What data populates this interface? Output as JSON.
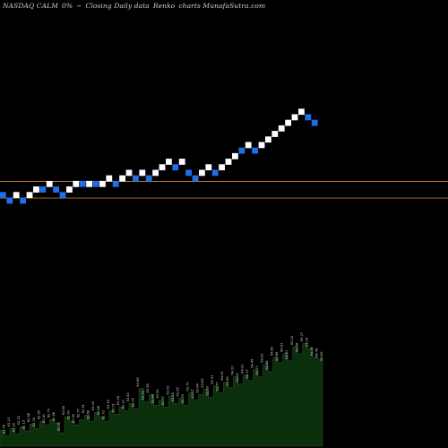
{
  "header": {
    "ticker": "NASDAQ CALM",
    "change": "0%",
    "arrow": "~",
    "description": "Closing Daily data",
    "chart_kind": "Renko",
    "brand": "charts MunafaSutra.com"
  },
  "colors": {
    "background": "#000000",
    "up_brick": "#ffffff",
    "down_brick": "#1e6fe8",
    "support_line": "#b87333",
    "volume_fill": "#0b2e0b",
    "volume_stroke": "#2a5a2a",
    "label_text": "#d0d0d0"
  },
  "chart_data": [
    {
      "type": "renko",
      "bricks": [
        {
          "dir": "down",
          "level": 0
        },
        {
          "dir": "down",
          "level": -1
        },
        {
          "dir": "up",
          "level": 0
        },
        {
          "dir": "down",
          "level": -1
        },
        {
          "dir": "up",
          "level": 0
        },
        {
          "dir": "up",
          "level": 1
        },
        {
          "dir": "down",
          "level": 1
        },
        {
          "dir": "up",
          "level": 2
        },
        {
          "dir": "down",
          "level": 1
        },
        {
          "dir": "down",
          "level": 0
        },
        {
          "dir": "up",
          "level": 1
        },
        {
          "dir": "up",
          "level": 2
        },
        {
          "dir": "down",
          "level": 2
        },
        {
          "dir": "up",
          "level": 2
        },
        {
          "dir": "down",
          "level": 2
        },
        {
          "dir": "up",
          "level": 2
        },
        {
          "dir": "up",
          "level": 3
        },
        {
          "dir": "down",
          "level": 2
        },
        {
          "dir": "up",
          "level": 3
        },
        {
          "dir": "up",
          "level": 4
        },
        {
          "dir": "down",
          "level": 3
        },
        {
          "dir": "up",
          "level": 4
        },
        {
          "dir": "down",
          "level": 3
        },
        {
          "dir": "up",
          "level": 4
        },
        {
          "dir": "up",
          "level": 5
        },
        {
          "dir": "up",
          "level": 6
        },
        {
          "dir": "down",
          "level": 5
        },
        {
          "dir": "up",
          "level": 6
        },
        {
          "dir": "down",
          "level": 4
        },
        {
          "dir": "down",
          "level": 3
        },
        {
          "dir": "up",
          "level": 4
        },
        {
          "dir": "up",
          "level": 5
        },
        {
          "dir": "down",
          "level": 4
        },
        {
          "dir": "up",
          "level": 5
        },
        {
          "dir": "up",
          "level": 6
        },
        {
          "dir": "up",
          "level": 7
        },
        {
          "dir": "down",
          "level": 8
        },
        {
          "dir": "up",
          "level": 9
        },
        {
          "dir": "down",
          "level": 8
        },
        {
          "dir": "up",
          "level": 9
        },
        {
          "dir": "up",
          "level": 10
        },
        {
          "dir": "up",
          "level": 11
        },
        {
          "dir": "up",
          "level": 12
        },
        {
          "dir": "up",
          "level": 13
        },
        {
          "dir": "up",
          "level": 14
        },
        {
          "dir": "up",
          "level": 15
        },
        {
          "dir": "down",
          "level": 14
        },
        {
          "dir": "down",
          "level": 13
        }
      ],
      "support_levels": [
        2.5,
        -0.5
      ]
    },
    {
      "type": "area",
      "series_label": "volume",
      "values": [
        18,
        12,
        20,
        14,
        22,
        17,
        25,
        20,
        28,
        24,
        30,
        26,
        15,
        33,
        28,
        24,
        30,
        35,
        28,
        38,
        33,
        28,
        40,
        36,
        44,
        40,
        48,
        42,
        65,
        50,
        58,
        46,
        52,
        44,
        56,
        48,
        54,
        46,
        60,
        52,
        58,
        64,
        55,
        68,
        60,
        72,
        66,
        78,
        70,
        80,
        74,
        86,
        78,
        92,
        84,
        100,
        94,
        104,
        96,
        112,
        104,
        116,
        110,
        100,
        98,
        94
      ],
      "labels": [
        "62.05",
        "61.78",
        "62.10",
        "61.92",
        "62.33",
        "62.15",
        "62.48",
        "62.30",
        "62.55",
        "62.41",
        "62.70",
        "62.58",
        "62.22",
        "62.84",
        "62.63",
        "62.50",
        "62.77",
        "62.91",
        "62.68",
        "63.04",
        "62.88",
        "62.72",
        "63.15",
        "63.01",
        "63.28",
        "63.12",
        "63.40",
        "63.25",
        "63.66",
        "63.52",
        "63.58",
        "63.44",
        "63.50",
        "63.37",
        "63.61",
        "63.46",
        "63.55",
        "63.39",
        "63.70",
        "63.57",
        "63.64",
        "63.82",
        "63.69",
        "63.91",
        "63.77",
        "64.05",
        "63.96",
        "64.22",
        "64.08",
        "64.31",
        "64.17",
        "64.45",
        "64.33",
        "64.62",
        "64.48",
        "64.80",
        "64.66",
        "64.93",
        "64.81",
        "65.12",
        "64.98",
        "65.27",
        "65.14",
        "64.90",
        "64.78",
        "64.66"
      ]
    }
  ]
}
